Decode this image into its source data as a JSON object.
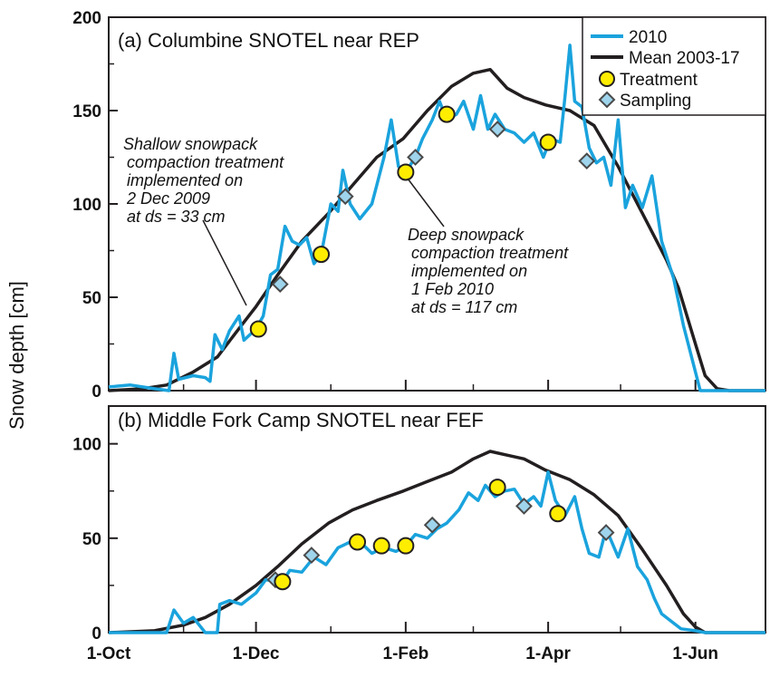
{
  "chart_data": [
    {
      "type": "line",
      "title": "(a) Columbine SNOTEL near REP",
      "ylabel": "Snow depth [cm]",
      "xlabel": "",
      "ylim": [
        0,
        200
      ],
      "yticks": [
        0,
        50,
        100,
        150,
        200
      ],
      "xlim": [
        "2009-10-01",
        "2010-06-30"
      ],
      "xticks": [
        "1-Oct",
        "1-Dec",
        "1-Feb",
        "1-Apr",
        "1-Jun"
      ],
      "grid": false,
      "legend_position": "top-right",
      "legend": [
        "2010",
        "Mean 2003-17",
        "Treatment",
        "Sampling"
      ],
      "series": [
        {
          "name": "2010",
          "color": "#1aa3dd",
          "points": [
            [
              "2009-10-01",
              2
            ],
            [
              "2009-10-10",
              3
            ],
            [
              "2009-10-20",
              1
            ],
            [
              "2009-10-26",
              0
            ],
            [
              "2009-10-28",
              20
            ],
            [
              "2009-10-30",
              6
            ],
            [
              "2009-11-05",
              8
            ],
            [
              "2009-11-10",
              7
            ],
            [
              "2009-11-12",
              5
            ],
            [
              "2009-11-14",
              30
            ],
            [
              "2009-11-17",
              22
            ],
            [
              "2009-11-20",
              32
            ],
            [
              "2009-11-24",
              40
            ],
            [
              "2009-11-26",
              27
            ],
            [
              "2009-12-01",
              33
            ],
            [
              "2009-12-04",
              40
            ],
            [
              "2009-12-07",
              62
            ],
            [
              "2009-12-10",
              65
            ],
            [
              "2009-12-13",
              88
            ],
            [
              "2009-12-16",
              80
            ],
            [
              "2009-12-19",
              78
            ],
            [
              "2009-12-22",
              82
            ],
            [
              "2009-12-25",
              68
            ],
            [
              "2009-12-28",
              73
            ],
            [
              "2010-01-01",
              100
            ],
            [
              "2010-01-04",
              96
            ],
            [
              "2010-01-06",
              118
            ],
            [
              "2010-01-09",
              100
            ],
            [
              "2010-01-13",
              92
            ],
            [
              "2010-01-18",
              100
            ],
            [
              "2010-01-20",
              110
            ],
            [
              "2010-01-23",
              125
            ],
            [
              "2010-01-26",
              145
            ],
            [
              "2010-01-29",
              120
            ],
            [
              "2010-02-01",
              117
            ],
            [
              "2010-02-05",
              125
            ],
            [
              "2010-02-08",
              135
            ],
            [
              "2010-02-12",
              145
            ],
            [
              "2010-02-15",
              155
            ],
            [
              "2010-02-18",
              145
            ],
            [
              "2010-02-22",
              148
            ],
            [
              "2010-02-25",
              155
            ],
            [
              "2010-03-01",
              140
            ],
            [
              "2010-03-04",
              158
            ],
            [
              "2010-03-07",
              140
            ],
            [
              "2010-03-10",
              148
            ],
            [
              "2010-03-14",
              140
            ],
            [
              "2010-03-18",
              138
            ],
            [
              "2010-03-22",
              133
            ],
            [
              "2010-03-26",
              138
            ],
            [
              "2010-03-30",
              125
            ],
            [
              "2010-04-02",
              135
            ],
            [
              "2010-04-06",
              133
            ],
            [
              "2010-04-08",
              158
            ],
            [
              "2010-04-10",
              185
            ],
            [
              "2010-04-12",
              155
            ],
            [
              "2010-04-15",
              152
            ],
            [
              "2010-04-18",
              130
            ],
            [
              "2010-04-21",
              122
            ],
            [
              "2010-04-24",
              125
            ],
            [
              "2010-04-27",
              110
            ],
            [
              "2010-04-30",
              145
            ],
            [
              "2010-05-03",
              98
            ],
            [
              "2010-05-06",
              110
            ],
            [
              "2010-05-10",
              98
            ],
            [
              "2010-05-14",
              115
            ],
            [
              "2010-05-18",
              80
            ],
            [
              "2010-05-23",
              60
            ],
            [
              "2010-05-27",
              35
            ],
            [
              "2010-06-01",
              10
            ],
            [
              "2010-06-03",
              0
            ],
            [
              "2010-06-30",
              0
            ]
          ]
        },
        {
          "name": "Mean 2003-17",
          "color": "#231f20",
          "points": [
            [
              "2009-10-01",
              0
            ],
            [
              "2009-10-15",
              1
            ],
            [
              "2009-10-25",
              3
            ],
            [
              "2009-11-05",
              10
            ],
            [
              "2009-11-15",
              18
            ],
            [
              "2009-11-25",
              35
            ],
            [
              "2009-12-01",
              45
            ],
            [
              "2009-12-10",
              62
            ],
            [
              "2009-12-20",
              80
            ],
            [
              "2009-12-31",
              95
            ],
            [
              "2010-01-10",
              110
            ],
            [
              "2010-01-20",
              125
            ],
            [
              "2010-01-31",
              135
            ],
            [
              "2010-02-10",
              150
            ],
            [
              "2010-02-20",
              163
            ],
            [
              "2010-03-01",
              170
            ],
            [
              "2010-03-08",
              172
            ],
            [
              "2010-03-15",
              162
            ],
            [
              "2010-03-22",
              157
            ],
            [
              "2010-03-31",
              153
            ],
            [
              "2010-04-10",
              150
            ],
            [
              "2010-04-20",
              142
            ],
            [
              "2010-04-30",
              120
            ],
            [
              "2010-05-10",
              95
            ],
            [
              "2010-05-20",
              70
            ],
            [
              "2010-05-25",
              55
            ],
            [
              "2010-06-01",
              25
            ],
            [
              "2010-06-05",
              8
            ],
            [
              "2010-06-10",
              1
            ],
            [
              "2010-06-15",
              0
            ],
            [
              "2010-06-30",
              0
            ]
          ]
        }
      ],
      "markers": {
        "treatment": [
          [
            "2009-12-02",
            33
          ],
          [
            "2009-12-28",
            73
          ],
          [
            "2010-02-01",
            117
          ],
          [
            "2010-02-18",
            148
          ],
          [
            "2010-04-01",
            133
          ]
        ],
        "sampling": [
          [
            "2009-12-11",
            57
          ],
          [
            "2010-01-07",
            104
          ],
          [
            "2010-02-05",
            125
          ],
          [
            "2010-03-11",
            140
          ],
          [
            "2010-04-17",
            123
          ]
        ]
      },
      "annotations": [
        {
          "lines": [
            "Shallow snowpack",
            "compaction treatment",
            "implemented on",
            "2 Dec 2009",
            "at ds = 33 cm"
          ]
        },
        {
          "lines": [
            "Deep snowpack",
            "compaction treatment",
            "implemented on",
            "1 Feb 2010",
            "at ds = 117 cm"
          ]
        }
      ]
    },
    {
      "type": "line",
      "title": "(b) Middle Fork Camp SNOTEL near FEF",
      "ylabel": "Snow depth [cm]",
      "xlabel": "",
      "ylim": [
        0,
        120
      ],
      "yticks": [
        0,
        50,
        100
      ],
      "xlim": [
        "2009-10-01",
        "2010-06-30"
      ],
      "xticks": [
        "1-Oct",
        "1-Dec",
        "1-Feb",
        "1-Apr",
        "1-Jun"
      ],
      "grid": false,
      "series": [
        {
          "name": "2010",
          "color": "#1aa3dd",
          "points": [
            [
              "2009-10-01",
              0
            ],
            [
              "2009-10-25",
              0
            ],
            [
              "2009-10-28",
              12
            ],
            [
              "2009-11-01",
              5
            ],
            [
              "2009-11-05",
              8
            ],
            [
              "2009-11-10",
              0
            ],
            [
              "2009-11-15",
              0
            ],
            [
              "2009-11-16",
              15
            ],
            [
              "2009-11-20",
              17
            ],
            [
              "2009-11-25",
              15
            ],
            [
              "2009-12-01",
              21
            ],
            [
              "2009-12-05",
              28
            ],
            [
              "2009-12-12",
              27
            ],
            [
              "2009-12-15",
              33
            ],
            [
              "2009-12-20",
              32
            ],
            [
              "2009-12-25",
              40
            ],
            [
              "2009-12-30",
              36
            ],
            [
              "2010-01-04",
              45
            ],
            [
              "2010-01-09",
              48
            ],
            [
              "2010-01-14",
              47
            ],
            [
              "2010-01-18",
              42
            ],
            [
              "2010-01-23",
              45
            ],
            [
              "2010-01-28",
              43
            ],
            [
              "2010-02-01",
              46
            ],
            [
              "2010-02-05",
              52
            ],
            [
              "2010-02-10",
              50
            ],
            [
              "2010-02-14",
              55
            ],
            [
              "2010-02-18",
              58
            ],
            [
              "2010-02-23",
              65
            ],
            [
              "2010-02-27",
              74
            ],
            [
              "2010-03-03",
              70
            ],
            [
              "2010-03-06",
              78
            ],
            [
              "2010-03-10",
              72
            ],
            [
              "2010-03-14",
              75
            ],
            [
              "2010-03-18",
              76
            ],
            [
              "2010-03-22",
              68
            ],
            [
              "2010-03-26",
              72
            ],
            [
              "2010-03-29",
              67
            ],
            [
              "2010-04-01",
              85
            ],
            [
              "2010-04-04",
              70
            ],
            [
              "2010-04-08",
              62
            ],
            [
              "2010-04-12",
              72
            ],
            [
              "2010-04-15",
              55
            ],
            [
              "2010-04-18",
              42
            ],
            [
              "2010-04-22",
              40
            ],
            [
              "2010-04-25",
              55
            ],
            [
              "2010-04-30",
              40
            ],
            [
              "2010-05-04",
              55
            ],
            [
              "2010-05-08",
              35
            ],
            [
              "2010-05-12",
              28
            ],
            [
              "2010-05-15",
              18
            ],
            [
              "2010-05-18",
              10
            ],
            [
              "2010-05-22",
              6
            ],
            [
              "2010-05-26",
              2
            ],
            [
              "2010-06-01",
              1
            ],
            [
              "2010-06-05",
              0
            ],
            [
              "2010-06-30",
              0
            ]
          ]
        },
        {
          "name": "Mean 2003-17",
          "color": "#231f20",
          "points": [
            [
              "2009-10-01",
              0
            ],
            [
              "2009-10-20",
              1
            ],
            [
              "2009-11-01",
              4
            ],
            [
              "2009-11-10",
              8
            ],
            [
              "2009-11-20",
              15
            ],
            [
              "2009-12-01",
              25
            ],
            [
              "2009-12-10",
              35
            ],
            [
              "2009-12-20",
              47
            ],
            [
              "2009-12-31",
              58
            ],
            [
              "2010-01-10",
              65
            ],
            [
              "2010-01-20",
              70
            ],
            [
              "2010-01-31",
              75
            ],
            [
              "2010-02-10",
              80
            ],
            [
              "2010-02-20",
              85
            ],
            [
              "2010-03-01",
              92
            ],
            [
              "2010-03-08",
              96
            ],
            [
              "2010-03-15",
              94
            ],
            [
              "2010-03-22",
              92
            ],
            [
              "2010-03-31",
              86
            ],
            [
              "2010-04-10",
              81
            ],
            [
              "2010-04-20",
              73
            ],
            [
              "2010-04-30",
              62
            ],
            [
              "2010-05-10",
              44
            ],
            [
              "2010-05-20",
              25
            ],
            [
              "2010-05-27",
              10
            ],
            [
              "2010-06-01",
              3
            ],
            [
              "2010-06-05",
              0
            ],
            [
              "2010-06-30",
              0
            ]
          ]
        }
      ],
      "markers": {
        "treatment": [
          [
            "2009-12-12",
            27
          ],
          [
            "2010-01-12",
            48
          ],
          [
            "2010-01-22",
            46
          ],
          [
            "2010-02-01",
            46
          ],
          [
            "2010-03-11",
            77
          ],
          [
            "2010-04-05",
            63
          ]
        ],
        "sampling": [
          [
            "2009-12-09",
            28
          ],
          [
            "2009-12-24",
            41
          ],
          [
            "2010-01-22",
            46
          ],
          [
            "2010-02-12",
            57
          ],
          [
            "2010-03-22",
            67
          ],
          [
            "2010-04-25",
            53
          ]
        ]
      }
    }
  ]
}
